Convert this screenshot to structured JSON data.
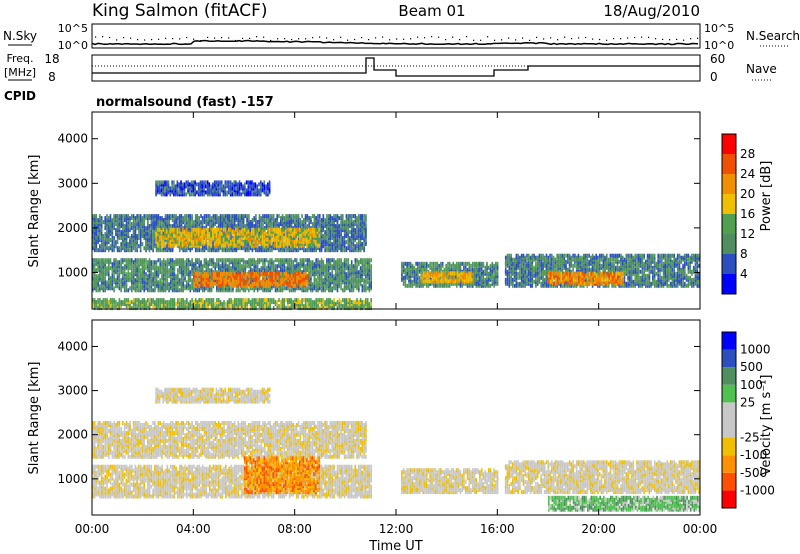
{
  "header": {
    "station": "King Salmon (fitACF)",
    "beam": "Beam 01",
    "date": "18/Aug/2010"
  },
  "noise_panel": {
    "left_label": "N.Sky",
    "right_label": "N.Search",
    "tick_top": "10^5",
    "tick_bottom": "10^0"
  },
  "freq_panel": {
    "left_label_1": "Freq.",
    "left_label_2": "[MHz]",
    "right_label": "Nave",
    "left_tick_top": "18",
    "left_tick_bottom": "8",
    "right_tick_top": "60",
    "right_tick_bottom": "0"
  },
  "cpid": {
    "label": "CPID",
    "text": "normalsound (fast) -157"
  },
  "colors": {
    "power_scale": [
      "#0000ff",
      "#2b4fbf",
      "#4f8f5f",
      "#50a050",
      "#f0c000",
      "#f09000",
      "#f05000",
      "#ff0000"
    ],
    "velocity_scale": [
      "#ff0000",
      "#ff5000",
      "#ff9000",
      "#f0c000",
      "#c8c8c8",
      "#c8c8c8",
      "#50c050",
      "#4f8f5f",
      "#2b4fbf",
      "#0000ff"
    ]
  },
  "chart_data": [
    {
      "type": "heatmap",
      "name": "power",
      "ylabel": "Slant Range [km]",
      "ylim": [
        180,
        4600
      ],
      "yticks": [
        "1000",
        "2000",
        "3000",
        "4000"
      ],
      "ytick_values": [
        1000,
        2000,
        3000,
        4000
      ],
      "xlim": [
        0,
        24
      ],
      "colorbar": {
        "label": "Power [dB]",
        "range": [
          0,
          32
        ],
        "ticks": [
          "4",
          "8",
          "12",
          "16",
          "20",
          "24",
          "28"
        ],
        "tick_values": [
          4,
          8,
          12,
          16,
          20,
          24,
          28
        ]
      },
      "regions": [
        {
          "t0": 0.0,
          "t1": 10.8,
          "r0": 1500,
          "r1": 2300,
          "level": 8
        },
        {
          "t0": 2.5,
          "t1": 9.0,
          "r0": 1600,
          "r1": 2000,
          "level": 18
        },
        {
          "t0": 0.0,
          "t1": 11.0,
          "r0": 600,
          "r1": 1300,
          "level": 10
        },
        {
          "t0": 4.0,
          "t1": 8.5,
          "r0": 700,
          "r1": 1000,
          "level": 24
        },
        {
          "t0": 2.5,
          "t1": 7.0,
          "r0": 2750,
          "r1": 3050,
          "level": 6
        },
        {
          "t0": 12.2,
          "t1": 16.0,
          "r0": 700,
          "r1": 1200,
          "level": 10
        },
        {
          "t0": 13.0,
          "t1": 15.0,
          "r0": 800,
          "r1": 1000,
          "level": 20
        },
        {
          "t0": 16.3,
          "t1": 24.0,
          "r0": 700,
          "r1": 1400,
          "level": 9
        },
        {
          "t0": 18.0,
          "t1": 21.0,
          "r0": 750,
          "r1": 1000,
          "level": 22
        },
        {
          "t0": 0.0,
          "t1": 11.0,
          "r0": 200,
          "r1": 400,
          "level": 14
        }
      ]
    },
    {
      "type": "heatmap",
      "name": "velocity",
      "ylabel": "Slant Range [km]",
      "ylim": [
        180,
        4600
      ],
      "yticks": [
        "1000",
        "2000",
        "3000",
        "4000"
      ],
      "ytick_values": [
        1000,
        2000,
        3000,
        4000
      ],
      "xlabel": "Time UT",
      "xlim": [
        0,
        24
      ],
      "xticks": [
        "00:00",
        "04:00",
        "08:00",
        "12:00",
        "16:00",
        "20:00",
        "00:00"
      ],
      "xtick_values": [
        0,
        4,
        8,
        12,
        16,
        20,
        24
      ],
      "colorbar": {
        "label": "Velocity [m s⁻¹]",
        "ticks": [
          "-1000",
          "-500",
          "-100",
          "-25",
          "25",
          "100",
          "500",
          "1000"
        ]
      },
      "regions": [
        {
          "t0": 0.0,
          "t1": 10.8,
          "r0": 1500,
          "r1": 2300,
          "level": 4
        },
        {
          "t0": 0.0,
          "t1": 11.0,
          "r0": 600,
          "r1": 1300,
          "level": 4
        },
        {
          "t0": 6.0,
          "t1": 9.0,
          "r0": 700,
          "r1": 1500,
          "level": 2
        },
        {
          "t0": 2.5,
          "t1": 7.0,
          "r0": 2750,
          "r1": 3050,
          "level": 4
        },
        {
          "t0": 12.2,
          "t1": 16.0,
          "r0": 700,
          "r1": 1200,
          "level": 4
        },
        {
          "t0": 16.3,
          "t1": 24.0,
          "r0": 700,
          "r1": 1400,
          "level": 4
        },
        {
          "t0": 18.0,
          "t1": 24.0,
          "r0": 300,
          "r1": 600,
          "level": 6
        }
      ]
    }
  ]
}
